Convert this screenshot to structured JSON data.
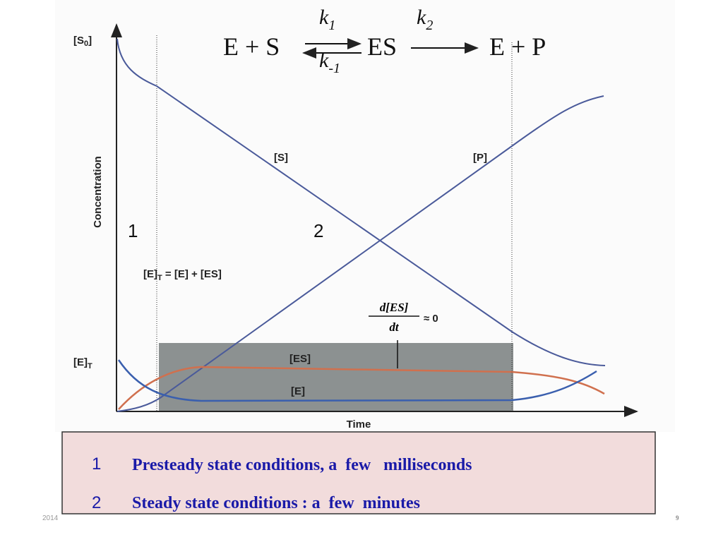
{
  "equation": {
    "left": "E + S",
    "k1": {
      "base": "k",
      "sub": "1"
    },
    "km1": {
      "base": "k",
      "sub": "-1"
    },
    "middle": "ES",
    "k2": {
      "base": "k",
      "sub": "2"
    },
    "right": "E + P"
  },
  "diagram": {
    "y_axis_label": "Concentration",
    "x_axis_label": "Time",
    "s0_label": {
      "open": "[S",
      "sub": "0",
      "close": "]"
    },
    "et_label": {
      "open": "[E]",
      "sub": "T"
    },
    "s_label": "[S]",
    "p_label": "[P]",
    "phase1": "1",
    "phase2": "2",
    "conservation": {
      "open": "[E]",
      "sub": "T",
      "rest": " = [E] + [ES]"
    },
    "derivative": {
      "numerator": "d[ES]",
      "denominator": "dt",
      "rest": "≈ 0"
    },
    "es_label": "[ES]",
    "e_label": "[E]"
  },
  "legend": {
    "rows": [
      {
        "number": "1",
        "text": "Presteady state conditions, a  few   milliseconds"
      },
      {
        "number": "2",
        "text": "Steady state conditions : a  few  minutes"
      }
    ]
  },
  "footer": {
    "year": "2014",
    "page": "9"
  }
}
